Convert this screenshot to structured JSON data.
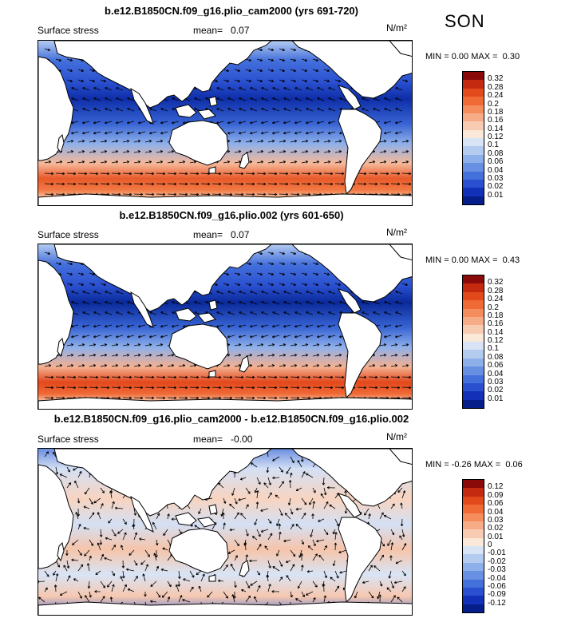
{
  "season": "SON",
  "panels": [
    {
      "title": "b.e12.B1850CN.f09_g16.plio_cam2000 (yrs 691-720)",
      "variable": "Surface stress",
      "mean_label": "mean=",
      "mean_value": "0.07",
      "units": "N/m²",
      "min_label": "MIN =",
      "min_value": "0.00",
      "max_label": "MAX =",
      "max_value": "0.30",
      "levels": [
        "0.32",
        "0.28",
        "0.24",
        "0.2",
        "0.18",
        "0.16",
        "0.14",
        "0.12",
        "0.1",
        "0.08",
        "0.06",
        "0.04",
        "0.03",
        "0.02",
        "0.01"
      ],
      "colors": [
        "#8a0a0a",
        "#c42a10",
        "#e24a1c",
        "#f06a36",
        "#f48c5c",
        "#f6ac86",
        "#f8ccb2",
        "#fae8d8",
        "#d8e4f6",
        "#b4cbf0",
        "#8eb0ea",
        "#6890e2",
        "#4470dc",
        "#2a50d0",
        "#1230b8",
        "#061e8a"
      ]
    },
    {
      "title": "b.e12.B1850CN.f09_g16.plio.002 (yrs 601-650)",
      "variable": "Surface stress",
      "mean_label": "mean=",
      "mean_value": "0.07",
      "units": "N/m²",
      "min_label": "MIN =",
      "min_value": "0.00",
      "max_label": "MAX =",
      "max_value": "0.43",
      "levels": [
        "0.32",
        "0.28",
        "0.24",
        "0.2",
        "0.18",
        "0.16",
        "0.14",
        "0.12",
        "0.1",
        "0.08",
        "0.06",
        "0.04",
        "0.03",
        "0.02",
        "0.01"
      ],
      "colors": [
        "#8a0a0a",
        "#c42a10",
        "#e24a1c",
        "#f06a36",
        "#f48c5c",
        "#f6ac86",
        "#f8ccb2",
        "#fae8d8",
        "#d8e4f6",
        "#b4cbf0",
        "#8eb0ea",
        "#6890e2",
        "#4470dc",
        "#2a50d0",
        "#1230b8",
        "#061e8a"
      ]
    },
    {
      "title": "b.e12.B1850CN.f09_g16.plio_cam2000 - b.e12.B1850CN.f09_g16.plio.002",
      "variable": "Surface stress",
      "mean_label": "mean=",
      "mean_value": "-0.00",
      "units": "N/m²",
      "min_label": "MIN =",
      "min_value": "-0.26",
      "max_label": "MAX =",
      "max_value": "0.06",
      "levels": [
        "0.12",
        "0.09",
        "0.06",
        "0.04",
        "0.03",
        "0.02",
        "0.01",
        "0",
        "-0.01",
        "-0.02",
        "-0.03",
        "-0.04",
        "-0.06",
        "-0.09",
        "-0.12"
      ],
      "colors": [
        "#8a0a0a",
        "#c42a10",
        "#e24a1c",
        "#f06a36",
        "#f48c5c",
        "#f6ac86",
        "#f8ccb2",
        "#fae8d8",
        "#d8e4f6",
        "#b4cbf0",
        "#8eb0ea",
        "#6890e2",
        "#4470dc",
        "#2a50d0",
        "#1230b8",
        "#061e8a"
      ]
    }
  ]
}
